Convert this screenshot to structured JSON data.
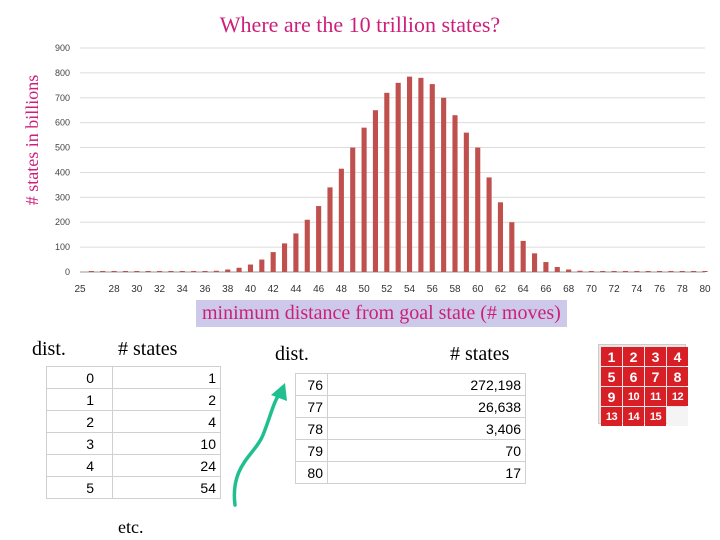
{
  "chart_data": {
    "type": "bar",
    "title": "Where are the 10 trillion states?",
    "ylabel": "# states in billions",
    "xlabel": "minimum distance from goal state (# moves)",
    "ylim": [
      0,
      900
    ],
    "yticks": [
      0,
      100,
      200,
      300,
      400,
      500,
      600,
      700,
      800,
      900
    ],
    "xlim": [
      25,
      80
    ],
    "xticks": [
      25,
      28,
      30,
      32,
      34,
      36,
      38,
      40,
      42,
      44,
      46,
      48,
      50,
      52,
      54,
      56,
      58,
      60,
      62,
      64,
      66,
      68,
      70,
      72,
      74,
      76,
      78,
      80
    ],
    "bar_color": "#c0504d",
    "grid": true,
    "legend": "none",
    "x": [
      26,
      27,
      28,
      29,
      30,
      31,
      32,
      33,
      34,
      35,
      36,
      37,
      38,
      39,
      40,
      41,
      42,
      43,
      44,
      45,
      46,
      47,
      48,
      49,
      50,
      51,
      52,
      53,
      54,
      55,
      56,
      57,
      58,
      59,
      60,
      61,
      62,
      63,
      64,
      65,
      66,
      67,
      68,
      69,
      70,
      71,
      72,
      73,
      74,
      75,
      76,
      77,
      78,
      79,
      80
    ],
    "values": [
      0,
      0,
      0,
      0,
      0,
      0,
      0,
      0,
      1,
      1,
      3,
      5,
      10,
      17,
      30,
      50,
      80,
      115,
      155,
      210,
      265,
      340,
      415,
      500,
      580,
      650,
      720,
      760,
      785,
      780,
      755,
      700,
      630,
      560,
      500,
      380,
      280,
      200,
      125,
      75,
      40,
      20,
      10,
      5,
      2,
      1,
      1,
      0,
      0,
      0,
      0,
      0,
      0,
      0,
      0
    ]
  },
  "headers": {
    "dist_left": "dist.",
    "states_left": "# states",
    "dist_right": "dist.",
    "states_right": "# states"
  },
  "table_left": [
    {
      "dist": "0",
      "states": "1"
    },
    {
      "dist": "1",
      "states": "2"
    },
    {
      "dist": "2",
      "states": "4"
    },
    {
      "dist": "3",
      "states": "10"
    },
    {
      "dist": "4",
      "states": "24"
    },
    {
      "dist": "5",
      "states": "54"
    }
  ],
  "table_right": [
    {
      "dist": "76",
      "states": "272,198"
    },
    {
      "dist": "77",
      "states": "26,638"
    },
    {
      "dist": "78",
      "states": "3,406"
    },
    {
      "dist": "79",
      "states": "70"
    },
    {
      "dist": "80",
      "states": "17"
    }
  ],
  "etc_text": "etc.",
  "puzzle_tiles": [
    "1",
    "2",
    "3",
    "4",
    "5",
    "6",
    "7",
    "8",
    "9",
    "10",
    "11",
    "12",
    "13",
    "14",
    "15",
    ""
  ],
  "colors": {
    "title": "#cc1f7a",
    "xlabel_bg": "#ccc9ea",
    "arrow": "#1fbf8f",
    "tile": "#d81f26"
  }
}
